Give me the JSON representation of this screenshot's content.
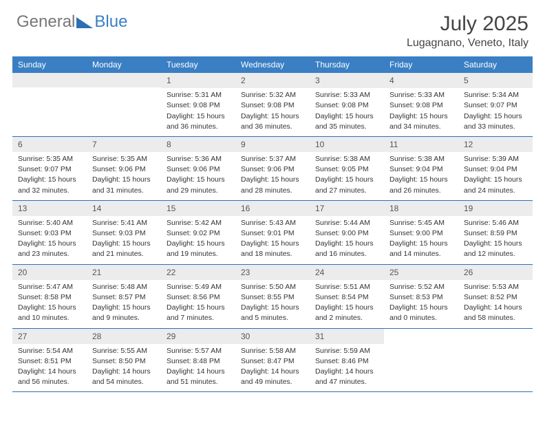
{
  "logo": {
    "part1": "General",
    "part2": "Blue"
  },
  "title": "July 2025",
  "location": "Lugagnano, Veneto, Italy",
  "dow": [
    "Sunday",
    "Monday",
    "Tuesday",
    "Wednesday",
    "Thursday",
    "Friday",
    "Saturday"
  ],
  "colors": {
    "header_bg": "#3a7fc4",
    "header_text": "#ffffff",
    "daynum_bg": "#ececec",
    "border": "#2d6fb3",
    "text": "#333333"
  },
  "weeks": [
    [
      {
        "empty": true
      },
      {
        "empty": true
      },
      {
        "n": "1",
        "sr": "Sunrise: 5:31 AM",
        "ss": "Sunset: 9:08 PM",
        "dl1": "Daylight: 15 hours",
        "dl2": "and 36 minutes."
      },
      {
        "n": "2",
        "sr": "Sunrise: 5:32 AM",
        "ss": "Sunset: 9:08 PM",
        "dl1": "Daylight: 15 hours",
        "dl2": "and 36 minutes."
      },
      {
        "n": "3",
        "sr": "Sunrise: 5:33 AM",
        "ss": "Sunset: 9:08 PM",
        "dl1": "Daylight: 15 hours",
        "dl2": "and 35 minutes."
      },
      {
        "n": "4",
        "sr": "Sunrise: 5:33 AM",
        "ss": "Sunset: 9:08 PM",
        "dl1": "Daylight: 15 hours",
        "dl2": "and 34 minutes."
      },
      {
        "n": "5",
        "sr": "Sunrise: 5:34 AM",
        "ss": "Sunset: 9:07 PM",
        "dl1": "Daylight: 15 hours",
        "dl2": "and 33 minutes."
      }
    ],
    [
      {
        "n": "6",
        "sr": "Sunrise: 5:35 AM",
        "ss": "Sunset: 9:07 PM",
        "dl1": "Daylight: 15 hours",
        "dl2": "and 32 minutes."
      },
      {
        "n": "7",
        "sr": "Sunrise: 5:35 AM",
        "ss": "Sunset: 9:06 PM",
        "dl1": "Daylight: 15 hours",
        "dl2": "and 31 minutes."
      },
      {
        "n": "8",
        "sr": "Sunrise: 5:36 AM",
        "ss": "Sunset: 9:06 PM",
        "dl1": "Daylight: 15 hours",
        "dl2": "and 29 minutes."
      },
      {
        "n": "9",
        "sr": "Sunrise: 5:37 AM",
        "ss": "Sunset: 9:06 PM",
        "dl1": "Daylight: 15 hours",
        "dl2": "and 28 minutes."
      },
      {
        "n": "10",
        "sr": "Sunrise: 5:38 AM",
        "ss": "Sunset: 9:05 PM",
        "dl1": "Daylight: 15 hours",
        "dl2": "and 27 minutes."
      },
      {
        "n": "11",
        "sr": "Sunrise: 5:38 AM",
        "ss": "Sunset: 9:04 PM",
        "dl1": "Daylight: 15 hours",
        "dl2": "and 26 minutes."
      },
      {
        "n": "12",
        "sr": "Sunrise: 5:39 AM",
        "ss": "Sunset: 9:04 PM",
        "dl1": "Daylight: 15 hours",
        "dl2": "and 24 minutes."
      }
    ],
    [
      {
        "n": "13",
        "sr": "Sunrise: 5:40 AM",
        "ss": "Sunset: 9:03 PM",
        "dl1": "Daylight: 15 hours",
        "dl2": "and 23 minutes."
      },
      {
        "n": "14",
        "sr": "Sunrise: 5:41 AM",
        "ss": "Sunset: 9:03 PM",
        "dl1": "Daylight: 15 hours",
        "dl2": "and 21 minutes."
      },
      {
        "n": "15",
        "sr": "Sunrise: 5:42 AM",
        "ss": "Sunset: 9:02 PM",
        "dl1": "Daylight: 15 hours",
        "dl2": "and 19 minutes."
      },
      {
        "n": "16",
        "sr": "Sunrise: 5:43 AM",
        "ss": "Sunset: 9:01 PM",
        "dl1": "Daylight: 15 hours",
        "dl2": "and 18 minutes."
      },
      {
        "n": "17",
        "sr": "Sunrise: 5:44 AM",
        "ss": "Sunset: 9:00 PM",
        "dl1": "Daylight: 15 hours",
        "dl2": "and 16 minutes."
      },
      {
        "n": "18",
        "sr": "Sunrise: 5:45 AM",
        "ss": "Sunset: 9:00 PM",
        "dl1": "Daylight: 15 hours",
        "dl2": "and 14 minutes."
      },
      {
        "n": "19",
        "sr": "Sunrise: 5:46 AM",
        "ss": "Sunset: 8:59 PM",
        "dl1": "Daylight: 15 hours",
        "dl2": "and 12 minutes."
      }
    ],
    [
      {
        "n": "20",
        "sr": "Sunrise: 5:47 AM",
        "ss": "Sunset: 8:58 PM",
        "dl1": "Daylight: 15 hours",
        "dl2": "and 10 minutes."
      },
      {
        "n": "21",
        "sr": "Sunrise: 5:48 AM",
        "ss": "Sunset: 8:57 PM",
        "dl1": "Daylight: 15 hours",
        "dl2": "and 9 minutes."
      },
      {
        "n": "22",
        "sr": "Sunrise: 5:49 AM",
        "ss": "Sunset: 8:56 PM",
        "dl1": "Daylight: 15 hours",
        "dl2": "and 7 minutes."
      },
      {
        "n": "23",
        "sr": "Sunrise: 5:50 AM",
        "ss": "Sunset: 8:55 PM",
        "dl1": "Daylight: 15 hours",
        "dl2": "and 5 minutes."
      },
      {
        "n": "24",
        "sr": "Sunrise: 5:51 AM",
        "ss": "Sunset: 8:54 PM",
        "dl1": "Daylight: 15 hours",
        "dl2": "and 2 minutes."
      },
      {
        "n": "25",
        "sr": "Sunrise: 5:52 AM",
        "ss": "Sunset: 8:53 PM",
        "dl1": "Daylight: 15 hours",
        "dl2": "and 0 minutes."
      },
      {
        "n": "26",
        "sr": "Sunrise: 5:53 AM",
        "ss": "Sunset: 8:52 PM",
        "dl1": "Daylight: 14 hours",
        "dl2": "and 58 minutes."
      }
    ],
    [
      {
        "n": "27",
        "sr": "Sunrise: 5:54 AM",
        "ss": "Sunset: 8:51 PM",
        "dl1": "Daylight: 14 hours",
        "dl2": "and 56 minutes."
      },
      {
        "n": "28",
        "sr": "Sunrise: 5:55 AM",
        "ss": "Sunset: 8:50 PM",
        "dl1": "Daylight: 14 hours",
        "dl2": "and 54 minutes."
      },
      {
        "n": "29",
        "sr": "Sunrise: 5:57 AM",
        "ss": "Sunset: 8:48 PM",
        "dl1": "Daylight: 14 hours",
        "dl2": "and 51 minutes."
      },
      {
        "n": "30",
        "sr": "Sunrise: 5:58 AM",
        "ss": "Sunset: 8:47 PM",
        "dl1": "Daylight: 14 hours",
        "dl2": "and 49 minutes."
      },
      {
        "n": "31",
        "sr": "Sunrise: 5:59 AM",
        "ss": "Sunset: 8:46 PM",
        "dl1": "Daylight: 14 hours",
        "dl2": "and 47 minutes."
      },
      {
        "empty": true,
        "trailing": true
      },
      {
        "empty": true,
        "trailing": true
      }
    ]
  ]
}
